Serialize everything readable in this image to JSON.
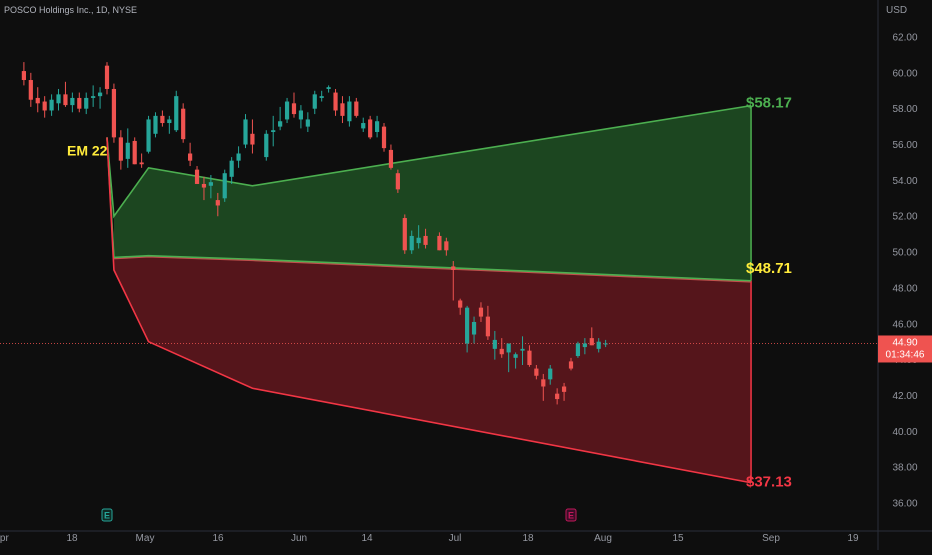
{
  "header": {
    "title": "POSCO Holdings Inc., 1D, NYSE",
    "currency": "USD"
  },
  "price_tag": {
    "price": "44.90",
    "countdown": "01:34:46"
  },
  "colors": {
    "background": "#0e0e0e",
    "up": "#26a69a",
    "down": "#ef5350",
    "green_zone": "#1e4a22",
    "red_zone": "#5a161c",
    "green_line": "#4caf50",
    "red_line": "#f23645",
    "em_label": "#ffeb3b",
    "price_tag_bg": "#ef5350"
  },
  "chart_data": {
    "type": "candlestick",
    "y_axis": {
      "min": 35,
      "max": 63,
      "ticks": [
        "36.00",
        "38.00",
        "40.00",
        "42.00",
        "44.00",
        "46.00",
        "48.00",
        "50.00",
        "52.00",
        "54.00",
        "56.00",
        "58.00",
        "60.00",
        "62.00"
      ]
    },
    "x_axis": {
      "ticks": [
        "Apr",
        "18",
        "May",
        "16",
        "Jun",
        "14",
        "Jul",
        "18",
        "Aug",
        "15",
        "Sep",
        "19"
      ]
    },
    "candles": [
      {
        "date": "Apr 12",
        "open": 60.1,
        "high": 60.6,
        "low": 59.3,
        "close": 59.6
      },
      {
        "date": "Apr 13",
        "open": 59.6,
        "high": 60.0,
        "low": 58.1,
        "close": 58.5
      },
      {
        "date": "Apr 14",
        "open": 58.6,
        "high": 59.2,
        "low": 57.8,
        "close": 58.3
      },
      {
        "date": "Apr 15",
        "open": 58.4,
        "high": 58.7,
        "low": 57.5,
        "close": 57.9
      },
      {
        "date": "Apr 18",
        "open": 57.9,
        "high": 58.8,
        "low": 57.6,
        "close": 58.5
      },
      {
        "date": "Apr 19",
        "open": 58.3,
        "high": 59.1,
        "low": 57.9,
        "close": 58.8
      },
      {
        "date": "Apr 20",
        "open": 58.8,
        "high": 59.5,
        "low": 58.1,
        "close": 58.2
      },
      {
        "date": "Apr 21",
        "open": 58.2,
        "high": 58.9,
        "low": 57.8,
        "close": 58.6
      },
      {
        "date": "Apr 22",
        "open": 58.6,
        "high": 58.9,
        "low": 57.8,
        "close": 58.0
      },
      {
        "date": "Apr 25",
        "open": 58.0,
        "high": 58.9,
        "low": 57.7,
        "close": 58.6
      },
      {
        "date": "Apr 26",
        "open": 58.6,
        "high": 59.3,
        "low": 58.1,
        "close": 58.7
      },
      {
        "date": "Apr 27",
        "open": 58.7,
        "high": 59.2,
        "low": 58.0,
        "close": 58.9
      },
      {
        "date": "Apr 28",
        "open": 60.4,
        "high": 60.6,
        "low": 58.8,
        "close": 59.1
      },
      {
        "date": "Apr 29",
        "open": 59.1,
        "high": 59.4,
        "low": 56.1,
        "close": 56.4
      },
      {
        "date": "May 2",
        "open": 56.4,
        "high": 56.8,
        "low": 54.6,
        "close": 55.1
      },
      {
        "date": "May 3",
        "open": 55.2,
        "high": 56.9,
        "low": 54.7,
        "close": 56.1
      },
      {
        "date": "May 4",
        "open": 56.2,
        "high": 56.4,
        "low": 54.9,
        "close": 54.9
      },
      {
        "date": "May 5",
        "open": 55.0,
        "high": 55.5,
        "low": 54.7,
        "close": 54.9
      },
      {
        "date": "May 6",
        "open": 55.6,
        "high": 57.6,
        "low": 55.5,
        "close": 57.4
      },
      {
        "date": "May 9",
        "open": 56.6,
        "high": 57.8,
        "low": 56.4,
        "close": 57.6
      },
      {
        "date": "May 10",
        "open": 57.6,
        "high": 57.9,
        "low": 57.0,
        "close": 57.2
      },
      {
        "date": "May 11",
        "open": 57.2,
        "high": 57.6,
        "low": 56.6,
        "close": 57.4
      },
      {
        "date": "May 12",
        "open": 56.8,
        "high": 59.0,
        "low": 56.7,
        "close": 58.7
      },
      {
        "date": "May 13",
        "open": 58.0,
        "high": 58.3,
        "low": 56.1,
        "close": 56.3
      },
      {
        "date": "May 16",
        "open": 55.5,
        "high": 56.1,
        "low": 54.8,
        "close": 55.1
      },
      {
        "date": "May 17",
        "open": 54.6,
        "high": 54.8,
        "low": 53.8,
        "close": 53.8
      },
      {
        "date": "May 18",
        "open": 53.8,
        "high": 54.2,
        "low": 52.9,
        "close": 53.6
      },
      {
        "date": "May 19",
        "open": 53.7,
        "high": 54.3,
        "low": 53.0,
        "close": 53.9
      },
      {
        "date": "May 20",
        "open": 52.9,
        "high": 53.3,
        "low": 52.0,
        "close": 52.6
      },
      {
        "date": "May 23",
        "open": 53.0,
        "high": 54.6,
        "low": 52.8,
        "close": 54.4
      },
      {
        "date": "May 24",
        "open": 54.2,
        "high": 55.3,
        "low": 53.8,
        "close": 55.1
      },
      {
        "date": "May 25",
        "open": 55.1,
        "high": 55.9,
        "low": 54.7,
        "close": 55.5
      },
      {
        "date": "May 26",
        "open": 56.0,
        "high": 57.7,
        "low": 55.8,
        "close": 57.4
      },
      {
        "date": "May 27",
        "open": 56.6,
        "high": 57.4,
        "low": 55.5,
        "close": 56.0
      },
      {
        "date": "May 31",
        "open": 55.3,
        "high": 56.8,
        "low": 55.1,
        "close": 56.6
      },
      {
        "date": "Jun 1",
        "open": 56.7,
        "high": 57.6,
        "low": 55.9,
        "close": 56.8
      },
      {
        "date": "Jun 2",
        "open": 57.0,
        "high": 58.1,
        "low": 56.8,
        "close": 57.3
      },
      {
        "date": "Jun 3",
        "open": 57.4,
        "high": 58.6,
        "low": 57.2,
        "close": 58.4
      },
      {
        "date": "Jun 6",
        "open": 58.3,
        "high": 58.9,
        "low": 57.5,
        "close": 57.7
      },
      {
        "date": "Jun 7",
        "open": 57.4,
        "high": 58.2,
        "low": 56.9,
        "close": 57.9
      },
      {
        "date": "Jun 8",
        "open": 57.0,
        "high": 57.8,
        "low": 56.7,
        "close": 57.4
      },
      {
        "date": "Jun 9",
        "open": 58.0,
        "high": 59.0,
        "low": 57.7,
        "close": 58.8
      },
      {
        "date": "Jun 10",
        "open": 58.6,
        "high": 59.0,
        "low": 58.4,
        "close": 58.7
      },
      {
        "date": "Jun 13",
        "open": 59.1,
        "high": 59.3,
        "low": 58.9,
        "close": 59.2
      },
      {
        "date": "Jun 14",
        "open": 58.9,
        "high": 59.1,
        "low": 57.6,
        "close": 57.9
      },
      {
        "date": "Jun 15",
        "open": 58.3,
        "high": 58.7,
        "low": 57.2,
        "close": 57.6
      },
      {
        "date": "Jun 16",
        "open": 57.3,
        "high": 58.7,
        "low": 57.0,
        "close": 58.4
      },
      {
        "date": "Jun 17",
        "open": 58.4,
        "high": 58.6,
        "low": 57.5,
        "close": 57.6
      },
      {
        "date": "Jun 20",
        "open": 56.9,
        "high": 57.5,
        "low": 56.7,
        "close": 57.2
      },
      {
        "date": "Jun 21",
        "open": 57.4,
        "high": 57.6,
        "low": 56.3,
        "close": 56.4
      },
      {
        "date": "Jun 22",
        "open": 56.7,
        "high": 57.6,
        "low": 56.4,
        "close": 57.3
      },
      {
        "date": "Jun 23",
        "open": 57.0,
        "high": 57.2,
        "low": 55.6,
        "close": 55.8
      },
      {
        "date": "Jun 24",
        "open": 55.7,
        "high": 56.0,
        "low": 54.6,
        "close": 54.7
      },
      {
        "date": "Jun 27",
        "open": 54.4,
        "high": 54.6,
        "low": 53.3,
        "close": 53.5
      },
      {
        "date": "Jun 28",
        "open": 51.9,
        "high": 52.1,
        "low": 49.9,
        "close": 50.1
      },
      {
        "date": "Jun 29",
        "open": 50.1,
        "high": 51.2,
        "low": 49.9,
        "close": 50.9
      },
      {
        "date": "Jun 30",
        "open": 50.5,
        "high": 51.5,
        "low": 50.2,
        "close": 50.8
      },
      {
        "date": "Jul 1",
        "open": 50.9,
        "high": 51.3,
        "low": 50.2,
        "close": 50.4
      },
      {
        "date": "Jul 5",
        "open": 50.9,
        "high": 51.1,
        "low": 50.1,
        "close": 50.1
      },
      {
        "date": "Jul 6",
        "open": 50.6,
        "high": 50.8,
        "low": 49.8,
        "close": 50.1
      },
      {
        "date": "Jul 7",
        "open": 49.2,
        "high": 49.5,
        "low": 47.3,
        "close": 49.0
      },
      {
        "date": "Jul 8",
        "open": 47.3,
        "high": 47.4,
        "low": 46.5,
        "close": 46.9
      },
      {
        "date": "Jul 11",
        "open": 44.9,
        "high": 47.0,
        "low": 44.4,
        "close": 46.9
      },
      {
        "date": "Jul 12",
        "open": 45.4,
        "high": 46.4,
        "low": 44.9,
        "close": 46.1
      },
      {
        "date": "Jul 13",
        "open": 46.9,
        "high": 47.2,
        "low": 46.1,
        "close": 46.4
      },
      {
        "date": "Jul 14",
        "open": 46.4,
        "high": 47.0,
        "low": 45.1,
        "close": 45.3
      },
      {
        "date": "Jul 15",
        "open": 44.6,
        "high": 45.6,
        "low": 44.0,
        "close": 45.1
      },
      {
        "date": "Jul 18",
        "open": 44.6,
        "high": 45.2,
        "low": 44.1,
        "close": 44.3
      },
      {
        "date": "Jul 19",
        "open": 44.4,
        "high": 44.9,
        "low": 43.3,
        "close": 44.9
      },
      {
        "date": "Jul 20",
        "open": 44.1,
        "high": 44.4,
        "low": 43.5,
        "close": 44.3
      },
      {
        "date": "Jul 21",
        "open": 44.5,
        "high": 45.3,
        "low": 43.7,
        "close": 44.6
      },
      {
        "date": "Jul 22",
        "open": 44.5,
        "high": 44.8,
        "low": 43.6,
        "close": 43.7
      },
      {
        "date": "Jul 25",
        "open": 43.5,
        "high": 43.7,
        "low": 42.9,
        "close": 43.1
      },
      {
        "date": "Jul 26",
        "open": 42.9,
        "high": 43.2,
        "low": 41.7,
        "close": 42.5
      },
      {
        "date": "Jul 27",
        "open": 42.9,
        "high": 43.7,
        "low": 42.6,
        "close": 43.5
      },
      {
        "date": "Jul 28",
        "open": 42.1,
        "high": 42.4,
        "low": 41.5,
        "close": 41.8
      },
      {
        "date": "Jul 29",
        "open": 42.5,
        "high": 42.7,
        "low": 41.7,
        "close": 42.2
      },
      {
        "date": "Aug 1",
        "open": 43.9,
        "high": 44.1,
        "low": 43.4,
        "close": 43.5
      },
      {
        "date": "Aug 2",
        "open": 44.2,
        "high": 45.0,
        "low": 44.1,
        "close": 44.9
      },
      {
        "date": "Aug 3",
        "open": 44.7,
        "high": 45.2,
        "low": 44.3,
        "close": 44.9
      },
      {
        "date": "Aug 4",
        "open": 45.2,
        "high": 45.8,
        "low": 44.8,
        "close": 44.8
      },
      {
        "date": "Aug 5",
        "open": 44.6,
        "high": 45.2,
        "low": 44.4,
        "close": 45.0
      },
      {
        "date": "Aug 8",
        "open": 44.9,
        "high": 45.1,
        "low": 44.7,
        "close": 44.9
      }
    ],
    "em_label": "EM 22",
    "zones": {
      "upper_line": [
        {
          "date": "Apr 28",
          "price": 56.4
        },
        {
          "date": "Apr 29",
          "price": 52.0
        },
        {
          "date": "May 6",
          "price": 54.7
        },
        {
          "date": "May 27",
          "price": 53.7
        },
        {
          "date": "Sep 6",
          "price": 58.17
        }
      ],
      "lower_line": [
        {
          "date": "Apr 28",
          "price": 56.4
        },
        {
          "date": "Apr 29",
          "price": 49.0
        },
        {
          "date": "May 6",
          "price": 45.0
        },
        {
          "date": "May 27",
          "price": 42.4
        },
        {
          "date": "Sep 6",
          "price": 37.13
        }
      ],
      "mid_line": [
        {
          "date": "Apr 28",
          "price": 56.4
        },
        {
          "date": "Apr 29",
          "price": 49.7
        },
        {
          "date": "May 6",
          "price": 49.8
        },
        {
          "date": "May 27",
          "price": 49.6
        },
        {
          "date": "Sep 6",
          "price": 48.4
        }
      ]
    },
    "level_labels": [
      {
        "text": "$58.17",
        "price": 58.17,
        "color": "green"
      },
      {
        "text": "$48.71",
        "price": 48.71,
        "color": "yellow"
      },
      {
        "text": "$37.13",
        "price": 37.13,
        "color": "red"
      }
    ],
    "current_price": 44.9,
    "event_markers": [
      {
        "letter": "E",
        "date": "Apr 28",
        "color": "green"
      },
      {
        "letter": "E",
        "date": "Aug 1",
        "color": "magenta"
      }
    ]
  }
}
